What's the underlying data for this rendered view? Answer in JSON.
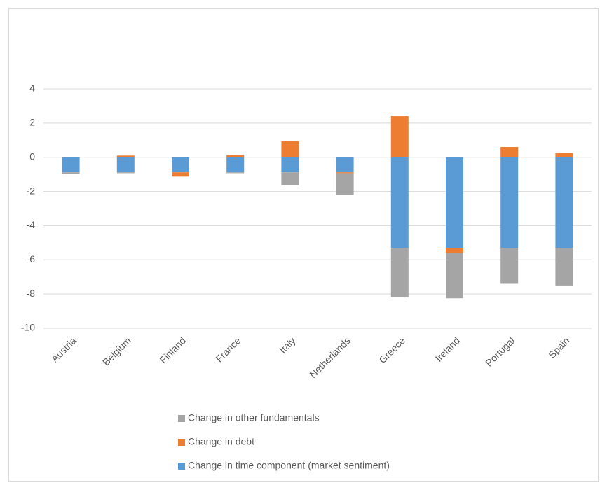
{
  "chart_data": {
    "type": "stacked-bar",
    "categories": [
      "Austria",
      "Belgium",
      "Finland",
      "France",
      "Italy",
      "Netherlands",
      "Greece",
      "Ireland",
      "Portugal",
      "Spain"
    ],
    "series": [
      {
        "name": "Change in other fundamentals",
        "color": "#a5a5a5",
        "values": [
          -0.1,
          -0.05,
          0,
          -0.05,
          -0.77,
          -1.27,
          -2.9,
          -2.65,
          -2.1,
          -2.2
        ]
      },
      {
        "name": "Change in debt",
        "color": "#ed7d31",
        "values": [
          0,
          0.1,
          -0.25,
          0.15,
          0.94,
          -0.05,
          2.4,
          -0.3,
          0.6,
          0.25
        ]
      },
      {
        "name": "Change in time component (market sentiment)",
        "color": "#5b9bd5",
        "values": [
          -0.88,
          -0.88,
          -0.88,
          -0.88,
          -0.88,
          -0.88,
          -5.3,
          -5.3,
          -5.3,
          -5.3
        ]
      }
    ],
    "ylim": [
      -10,
      4
    ],
    "yticks": [
      -10,
      -8,
      -6,
      -4,
      -2,
      0,
      2,
      4
    ],
    "grid": true
  }
}
